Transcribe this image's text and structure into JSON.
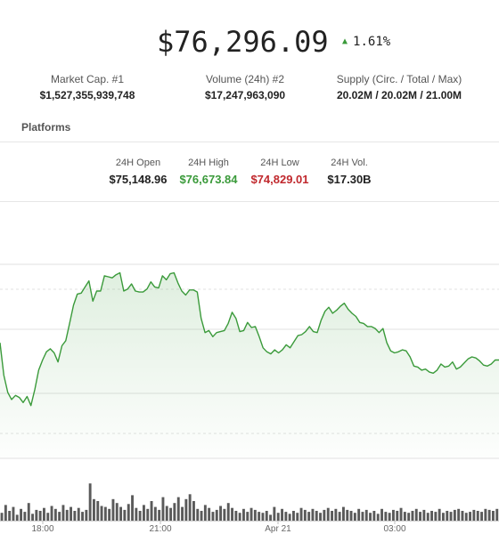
{
  "price": {
    "value": "$76,296.09",
    "change": "1.61%",
    "change_direction": "up",
    "up_color": "#3a9a3a"
  },
  "stats": [
    {
      "label": "Market Cap. #1",
      "value": "$1,527,355,939,748"
    },
    {
      "label": "Volume (24h) #2",
      "value": "$17,247,963,090"
    },
    {
      "label": "Supply (Circ. / Total / Max)",
      "value": "20.02M / 20.02M / 21.00M"
    }
  ],
  "platforms_label": "Platforms",
  "ohlc": [
    {
      "label": "24H Open",
      "value": "$75,148.96",
      "color": "#222222"
    },
    {
      "label": "24H High",
      "value": "$76,673.84",
      "color": "#3a9a3a"
    },
    {
      "label": "24H Low",
      "value": "$74,829.01",
      "color": "#c0282d"
    },
    {
      "label": "24H Vol.",
      "value": "$17.30B",
      "color": "#222222"
    }
  ],
  "chart_data": {
    "type": "area",
    "x_tick_labels": [
      "18:00",
      "21:00",
      "Apr 21",
      "03:00"
    ],
    "line_color": "#3a9a3a",
    "price_series": [
      75540,
      75220,
      75050,
      74980,
      75020,
      75000,
      74950,
      75010,
      74920,
      75080,
      75270,
      75370,
      75450,
      75480,
      75440,
      75350,
      75510,
      75560,
      75730,
      75910,
      76020,
      76030,
      76090,
      76150,
      75950,
      76050,
      76050,
      76200,
      76190,
      76180,
      76210,
      76230,
      76050,
      76070,
      76120,
      76050,
      76040,
      76040,
      76070,
      76140,
      76090,
      76080,
      76200,
      76160,
      76220,
      76230,
      76130,
      76050,
      76010,
      76060,
      76060,
      76040,
      75780,
      75640,
      75660,
      75600,
      75640,
      75650,
      75660,
      75730,
      75840,
      75780,
      75650,
      75660,
      75740,
      75690,
      75700,
      75600,
      75490,
      75450,
      75430,
      75470,
      75440,
      75470,
      75520,
      75490,
      75550,
      75610,
      75620,
      75650,
      75700,
      75650,
      75640,
      75760,
      75850,
      75890,
      75830,
      75860,
      75900,
      75930,
      75870,
      75830,
      75800,
      75740,
      75730,
      75700,
      75700,
      75680,
      75640,
      75680,
      75540,
      75460,
      75440,
      75450,
      75470,
      75460,
      75400,
      75310,
      75300,
      75270,
      75280,
      75250,
      75240,
      75270,
      75330,
      75300,
      75310,
      75350,
      75280,
      75300,
      75340,
      75380,
      75400,
      75390,
      75360,
      75320,
      75310,
      75330,
      75370,
      75370
    ],
    "volume_series": [
      8,
      16,
      10,
      14,
      6,
      12,
      9,
      18,
      7,
      11,
      10,
      13,
      8,
      15,
      12,
      9,
      16,
      11,
      14,
      10,
      13,
      9,
      11,
      38,
      22,
      20,
      15,
      14,
      12,
      22,
      18,
      14,
      11,
      17,
      26,
      13,
      10,
      16,
      12,
      20,
      14,
      11,
      24,
      15,
      13,
      18,
      24,
      14,
      22,
      27,
      20,
      12,
      10,
      16,
      13,
      9,
      11,
      15,
      12,
      18,
      13,
      10,
      8,
      12,
      9,
      13,
      11,
      9,
      8,
      10,
      6,
      14,
      8,
      12,
      9,
      7,
      10,
      8,
      13,
      11,
      9,
      12,
      10,
      8,
      11,
      13,
      10,
      12,
      9,
      14,
      11,
      10,
      8,
      12,
      9,
      11,
      8,
      10,
      7,
      12,
      9,
      8,
      11,
      10,
      13,
      9,
      8,
      10,
      12,
      9,
      11,
      8,
      10,
      9,
      12,
      8,
      10,
      9,
      11,
      12,
      10,
      8,
      9,
      11,
      10,
      9,
      12,
      11,
      10,
      12
    ]
  }
}
